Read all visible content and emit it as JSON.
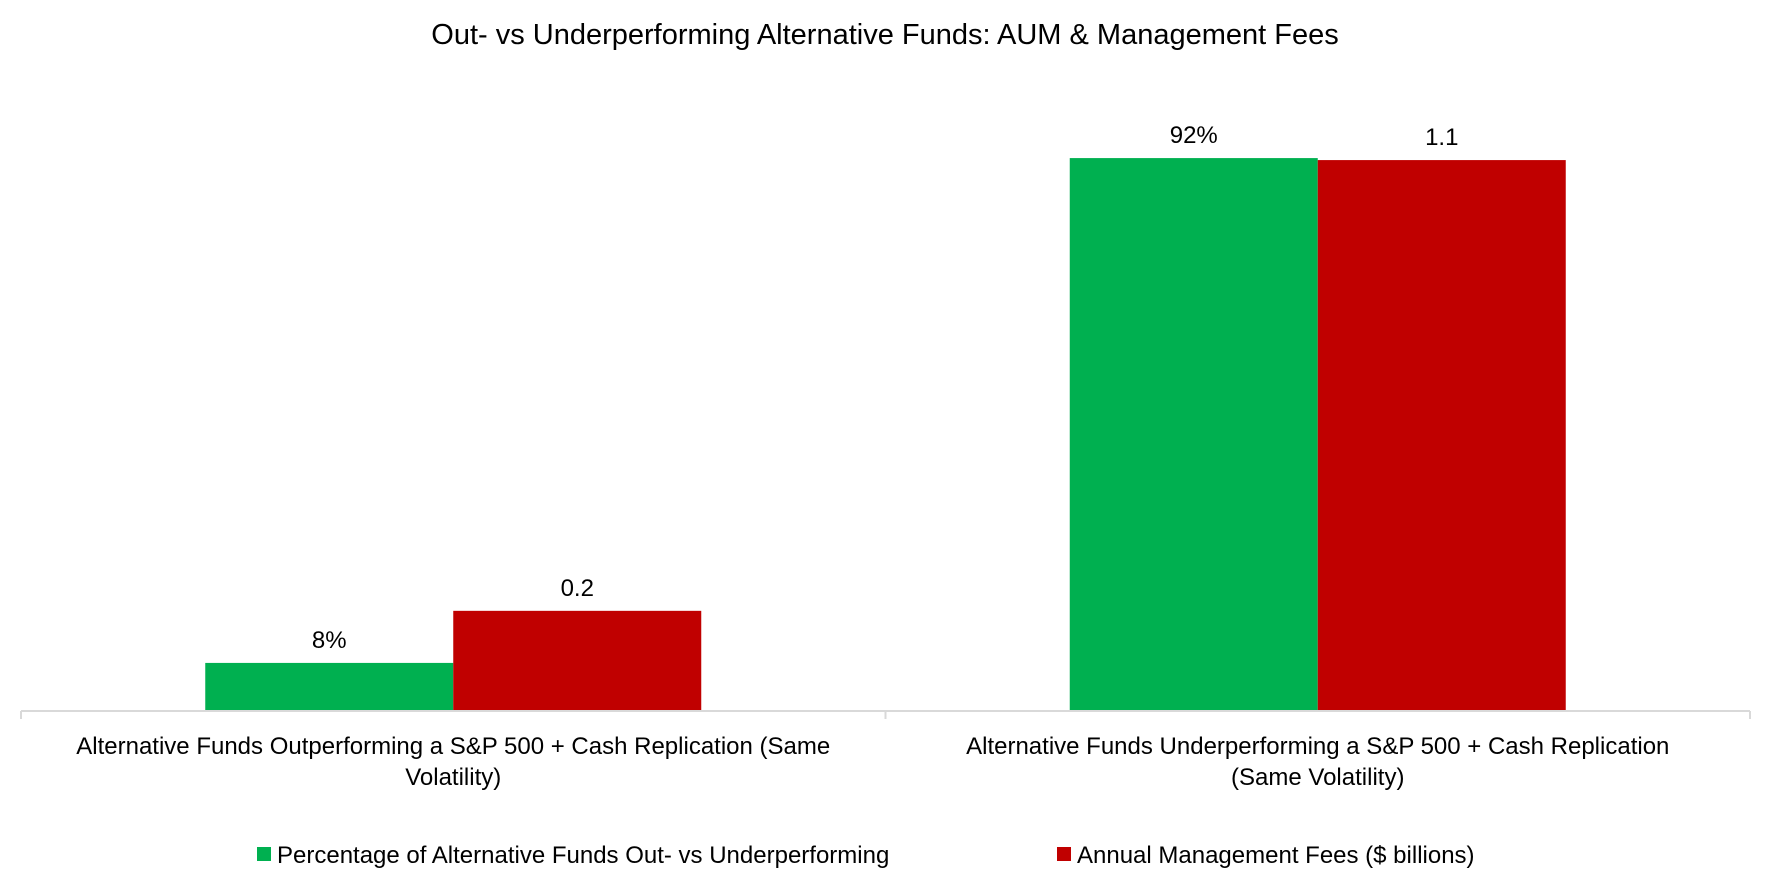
{
  "chart_data": {
    "type": "bar",
    "title": "Out- vs Underperforming Alternative Funds: AUM & Management Fees",
    "categories": [
      [
        "Alternative Funds Outperforming a S&P 500 + Cash Replication (Same",
        "Volatility)"
      ],
      [
        "Alternative Funds Underperforming a S&P 500 + Cash Replication",
        "(Same Volatility)"
      ]
    ],
    "series": [
      {
        "name": "Percentage of Alternative Funds Out- vs Underperforming",
        "color": "#00b050",
        "values": [
          8,
          92
        ],
        "labels": [
          "8%",
          "92%"
        ],
        "max": 100
      },
      {
        "name": "Annual Management Fees ($ billions)",
        "color": "#c00000",
        "values": [
          0.2,
          1.1
        ],
        "labels": [
          "0.2",
          "1.1"
        ],
        "max": 1.2
      }
    ],
    "xlabel": "",
    "ylabel": "",
    "grid": false,
    "legend": "bottom",
    "axis_color": "#d9d9d9"
  }
}
